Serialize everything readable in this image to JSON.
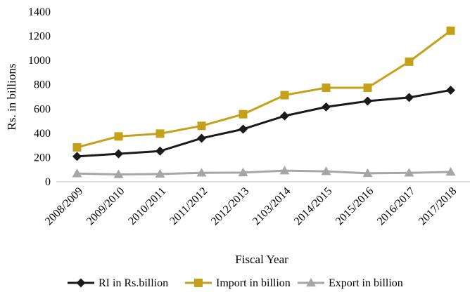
{
  "chart_data": {
    "type": "line",
    "title": "",
    "xlabel": "Fiscal Year",
    "ylabel": "Rs. in billions",
    "ylim": [
      0,
      1400
    ],
    "yticks": [
      0,
      200,
      400,
      600,
      800,
      1000,
      1200,
      1400
    ],
    "grid": false,
    "legend": "bottom",
    "categories": [
      "2008/2009",
      "2009/2010",
      "2010/2011",
      "2011/2012",
      "2012/2013",
      "2103/2014",
      "2014/2015",
      "2015/2016",
      "2016/2017",
      "2017/2018"
    ],
    "series": [
      {
        "name": "RI in Rs.billion",
        "color": "#1a1a1a",
        "marker": "diamond",
        "values": [
          209,
          231,
          253,
          359,
          434,
          543,
          617,
          665,
          695,
          755
        ]
      },
      {
        "name": "Import in billion",
        "color": "#c5a01a",
        "marker": "square",
        "values": [
          284,
          374,
          397,
          461,
          557,
          714,
          775,
          775,
          990,
          1245
        ]
      },
      {
        "name": "Export in billion",
        "color": "#a6a6a6",
        "marker": "triangle",
        "values": [
          68,
          61,
          64,
          74,
          76,
          92,
          86,
          70,
          74,
          81
        ]
      }
    ]
  }
}
